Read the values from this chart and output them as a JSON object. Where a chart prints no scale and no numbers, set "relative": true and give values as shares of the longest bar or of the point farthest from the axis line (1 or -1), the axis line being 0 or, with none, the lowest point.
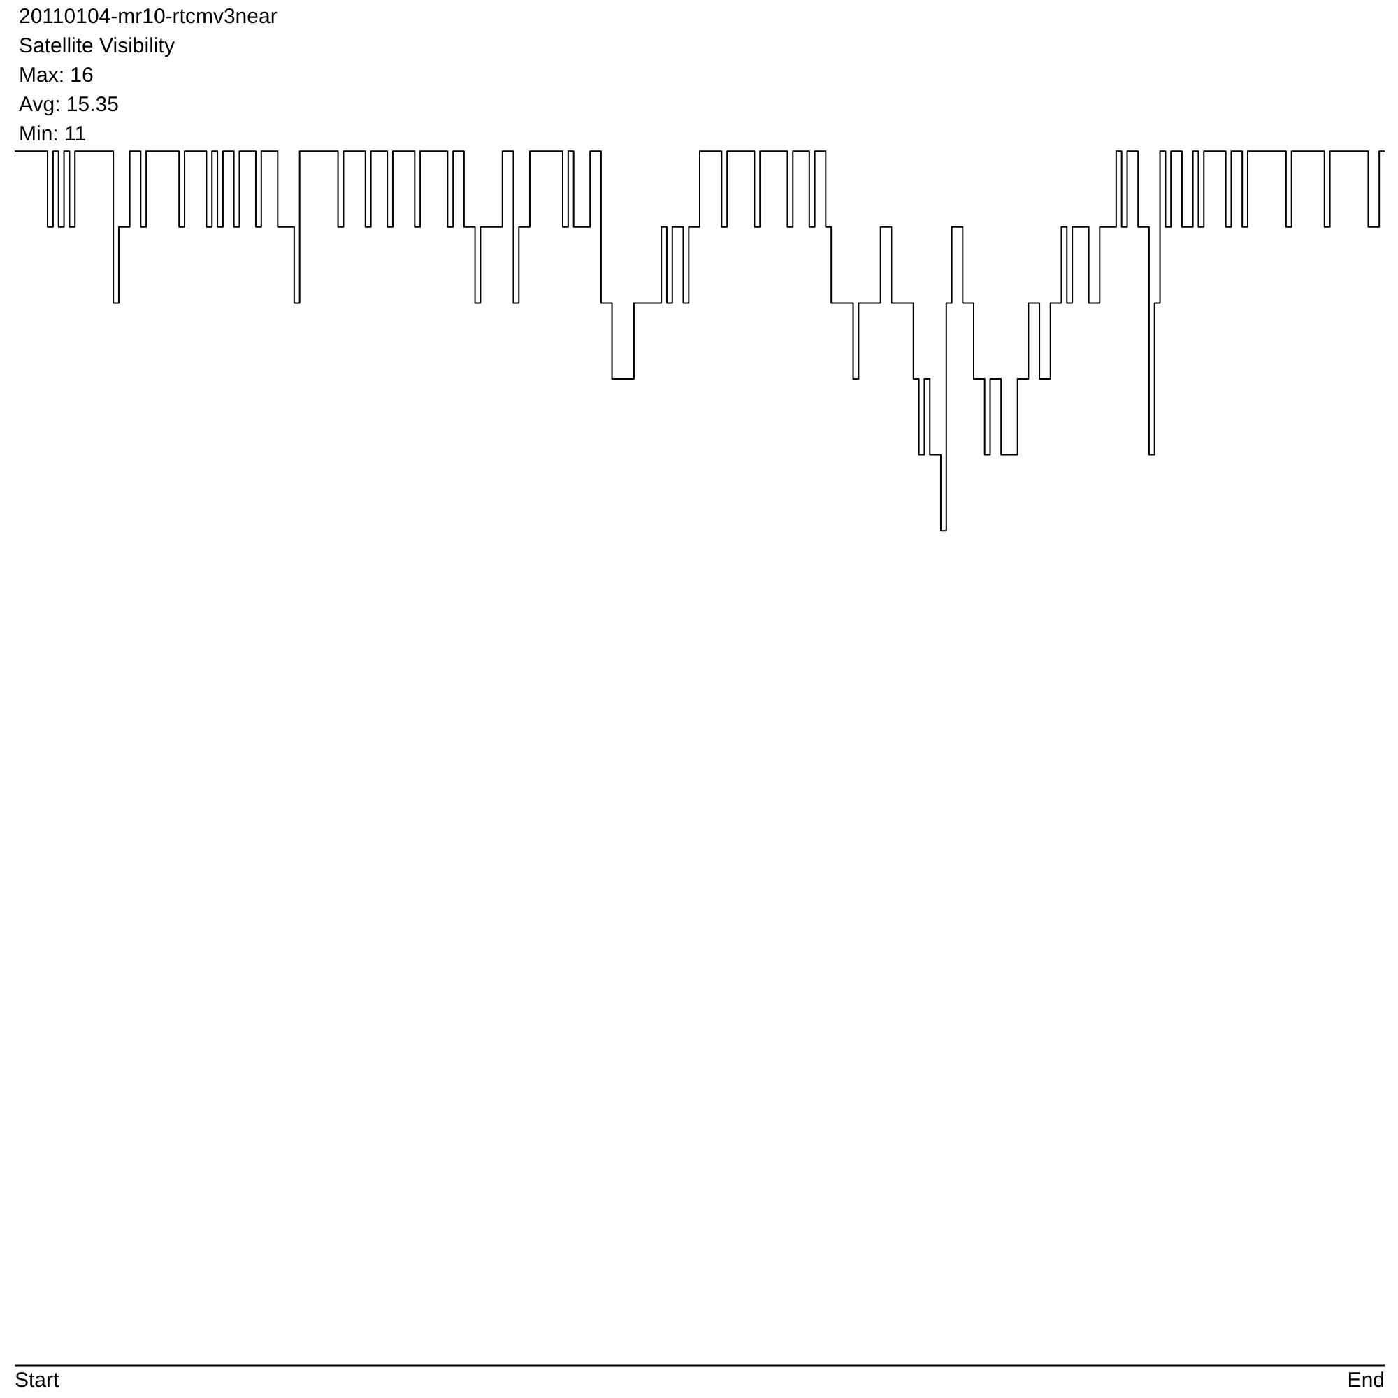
{
  "chart_data": {
    "type": "step",
    "relative": true,
    "title": "20110104-mr10-rtcmv3near",
    "subtitle": "Satellite Visibility",
    "annotations": [
      "Max: 16",
      "Avg: 15.35",
      "Min: 11",
      "Start",
      "End"
    ],
    "grid": false,
    "categories": [
      null,
      null,
      null,
      null,
      null,
      null,
      null,
      null,
      null,
      null,
      null,
      null,
      null,
      null,
      null,
      null,
      null,
      null,
      null,
      null,
      null,
      null,
      null,
      null,
      null,
      null,
      null,
      null,
      null,
      null,
      null,
      null,
      null,
      null,
      null,
      null,
      null,
      null,
      null,
      null,
      null,
      null,
      null,
      null,
      null,
      null,
      null,
      null,
      null,
      null,
      null,
      null,
      null,
      null,
      null,
      null,
      null,
      null,
      null,
      null,
      null,
      null,
      null,
      null,
      null,
      null,
      null,
      null,
      null,
      null,
      null,
      null,
      null,
      null,
      null,
      null,
      null,
      null,
      null,
      null,
      null,
      null,
      null,
      null,
      null,
      null,
      null,
      null,
      null,
      null,
      null,
      null,
      null,
      null,
      null,
      null,
      null,
      null,
      null,
      null,
      null,
      null,
      null,
      null,
      null,
      null,
      null,
      null,
      null,
      null,
      null,
      null,
      null,
      null,
      null,
      null,
      null,
      null,
      null,
      null,
      null,
      null,
      null,
      null,
      null,
      null,
      null,
      null,
      null,
      null,
      null,
      null,
      null,
      null,
      null,
      null,
      null,
      null,
      null,
      null,
      null,
      null,
      null,
      null,
      null,
      null,
      null,
      null,
      null,
      null,
      null,
      null,
      null,
      null,
      null,
      null,
      null,
      null,
      null,
      null,
      null,
      null,
      null,
      null,
      null,
      null,
      null,
      null,
      null,
      null,
      null,
      null,
      null,
      null,
      null,
      null,
      null,
      null,
      null,
      null,
      null,
      null,
      null,
      null,
      null,
      null,
      null,
      null,
      null,
      null,
      null,
      null,
      null,
      null,
      null,
      null,
      null,
      null,
      null,
      null,
      null,
      null,
      null,
      null,
      null,
      null,
      null,
      null,
      null,
      null,
      null,
      null,
      null,
      null,
      null,
      null,
      null,
      null,
      null,
      null,
      null,
      null,
      null,
      null,
      null,
      null,
      null,
      null,
      null,
      null,
      null,
      null,
      null,
      null,
      null,
      null,
      null,
      null,
      null,
      null,
      null,
      null,
      null,
      null,
      null,
      null,
      null,
      null,
      null,
      null
    ],
    "series": [
      {
        "color": "#000000",
        "values": [
          1,
          1,
          1,
          1,
          1,
          1,
          0.9375,
          1,
          0.9375,
          1,
          0.9375,
          1,
          1,
          1,
          1,
          1,
          1,
          1,
          0.875,
          0.9375,
          0.9375,
          1,
          1,
          0.9375,
          1,
          1,
          1,
          1,
          1,
          1,
          0.9375,
          1,
          1,
          1,
          1,
          0.9375,
          1,
          0.9375,
          1,
          1,
          0.9375,
          1,
          1,
          1,
          0.9375,
          1,
          1,
          1,
          0.9375,
          0.9375,
          0.9375,
          0.875,
          1,
          1,
          1,
          1,
          1,
          1,
          1,
          0.9375,
          1,
          1,
          1,
          1,
          0.9375,
          1,
          1,
          1,
          0.9375,
          1,
          1,
          1,
          1,
          0.9375,
          1,
          1,
          1,
          1,
          1,
          0.9375,
          1,
          1,
          0.9375,
          0.9375,
          0.875,
          0.9375,
          0.9375,
          0.9375,
          0.9375,
          1,
          1,
          0.875,
          0.9375,
          0.9375,
          1,
          1,
          1,
          1,
          1,
          1,
          0.9375,
          1,
          0.9375,
          0.9375,
          0.9375,
          1,
          1,
          0.875,
          0.875,
          0.8125,
          0.8125,
          0.8125,
          0.8125,
          0.875,
          0.875,
          0.875,
          0.875,
          0.875,
          0.9375,
          0.875,
          0.9375,
          0.9375,
          0.875,
          0.9375,
          0.9375,
          1,
          1,
          1,
          1,
          0.9375,
          1,
          1,
          1,
          1,
          1,
          0.9375,
          1,
          1,
          1,
          1,
          1,
          0.9375,
          1,
          1,
          1,
          0.9375,
          1,
          1,
          0.9375,
          0.875,
          0.875,
          0.875,
          0.875,
          0.8125,
          0.875,
          0.875,
          0.875,
          0.875,
          0.9375,
          0.9375,
          0.875,
          0.875,
          0.875,
          0.875,
          0.8125,
          0.75,
          0.8125,
          0.75,
          0.75,
          0.6875,
          0.875,
          0.9375,
          0.9375,
          0.875,
          0.875,
          0.8125,
          0.8125,
          0.75,
          0.8125,
          0.8125,
          0.75,
          0.75,
          0.75,
          0.8125,
          0.8125,
          0.875,
          0.875,
          0.8125,
          0.8125,
          0.875,
          0.875,
          0.9375,
          0.875,
          0.9375,
          0.9375,
          0.9375,
          0.875,
          0.875,
          0.9375,
          0.9375,
          0.9375,
          1,
          0.9375,
          1,
          1,
          0.9375,
          0.9375,
          0.75,
          0.875,
          1,
          0.9375,
          1,
          1,
          0.9375,
          0.9375,
          1,
          0.9375,
          1,
          1,
          1,
          1,
          0.9375,
          1,
          1,
          0.9375,
          1,
          1,
          1,
          1,
          1,
          1,
          1,
          0.9375,
          1,
          1,
          1,
          1,
          1,
          1,
          0.9375,
          1,
          1,
          1,
          1,
          1,
          1,
          1,
          0.9375,
          0.9375,
          1
        ]
      }
    ]
  }
}
